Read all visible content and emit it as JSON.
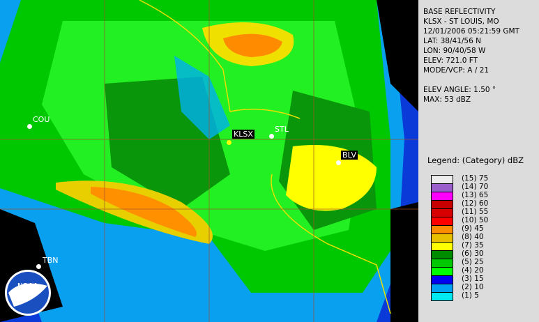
{
  "product": "BASE REFLECTIVITY",
  "station": "KLSX - ST LOUIS, MO",
  "datetime": "12/01/2006 05:21:59 GMT",
  "lat": "LAT: 38/41/56 N",
  "lon": "LON: 90/40/58 W",
  "elev": "ELEV: 721.0 FT",
  "mode": "MODE/VCP: A / 21",
  "elev_angle": "ELEV ANGLE: 1.50 °",
  "max": "MAX: 53 dBZ",
  "legend": {
    "title": "Legend: (Category) dBZ",
    "items": [
      {
        "label": "(15) 75",
        "color": "#ececec"
      },
      {
        "label": "(14) 70",
        "color": "#9a5fcb"
      },
      {
        "label": "(13) 65",
        "color": "#ff00ff"
      },
      {
        "label": "(12) 60",
        "color": "#c80000"
      },
      {
        "label": "(11) 55",
        "color": "#d60000"
      },
      {
        "label": "(10) 50",
        "color": "#ff0000"
      },
      {
        "label": "(9) 45",
        "color": "#ff8c00"
      },
      {
        "label": "(8) 40",
        "color": "#e8c000"
      },
      {
        "label": "(7) 35",
        "color": "#ffff00"
      },
      {
        "label": "(6) 30",
        "color": "#008c00"
      },
      {
        "label": "(5) 25",
        "color": "#00c800"
      },
      {
        "label": "(4) 20",
        "color": "#00ff00"
      },
      {
        "label": "(3) 15",
        "color": "#0000f0"
      },
      {
        "label": "(2) 10",
        "color": "#00a0f5"
      },
      {
        "label": "(1) 5",
        "color": "#00e8f0"
      }
    ]
  },
  "cities": {
    "cou": "COU",
    "klsx": "KLSX",
    "stl": "STL",
    "blv": "BLV",
    "tbn": "TBN"
  },
  "logo": "NOAA"
}
